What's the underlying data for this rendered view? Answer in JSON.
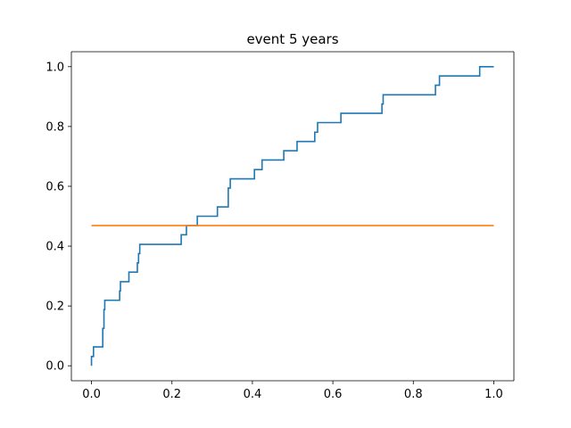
{
  "chart_data": {
    "type": "line",
    "title": "event 5 years",
    "xlabel": "",
    "ylabel": "",
    "xlim": [
      -0.05,
      1.05
    ],
    "ylim": [
      -0.05,
      1.05
    ],
    "grid": false,
    "x_ticks": [
      0.0,
      0.2,
      0.4,
      0.6,
      0.8,
      1.0
    ],
    "y_ticks": [
      0.0,
      0.2,
      0.4,
      0.6,
      0.8,
      1.0
    ],
    "x_tick_labels": [
      "0.0",
      "0.2",
      "0.4",
      "0.6",
      "0.8",
      "1.0"
    ],
    "y_tick_labels": [
      "0.0",
      "0.2",
      "0.4",
      "0.6",
      "0.8",
      "1.0"
    ],
    "series": [
      {
        "color": "#1f77b4",
        "step": true,
        "x": [
          0.0,
          0.0,
          0.005,
          0.005,
          0.01,
          0.01,
          0.028,
          0.028,
          0.031,
          0.031,
          0.033,
          0.033,
          0.07,
          0.07,
          0.072,
          0.072,
          0.093,
          0.093,
          0.114,
          0.114,
          0.117,
          0.117,
          0.12,
          0.12,
          0.223,
          0.223,
          0.236,
          0.236,
          0.263,
          0.263,
          0.313,
          0.313,
          0.34,
          0.34,
          0.345,
          0.345,
          0.352,
          0.352,
          0.405,
          0.405,
          0.424,
          0.424,
          0.478,
          0.478,
          0.511,
          0.511,
          0.555,
          0.555,
          0.562,
          0.562,
          0.62,
          0.62,
          0.722,
          0.722,
          0.725,
          0.725,
          0.855,
          0.855,
          0.858,
          0.858,
          0.865,
          0.865,
          0.965,
          0.965,
          1.0
        ],
        "y": [
          0.0,
          0.031,
          0.031,
          0.063,
          0.063,
          0.063,
          0.063,
          0.125,
          0.125,
          0.188,
          0.188,
          0.219,
          0.219,
          0.25,
          0.25,
          0.281,
          0.281,
          0.313,
          0.313,
          0.344,
          0.344,
          0.375,
          0.375,
          0.406,
          0.406,
          0.438,
          0.438,
          0.469,
          0.469,
          0.5,
          0.5,
          0.531,
          0.531,
          0.594,
          0.594,
          0.625,
          0.625,
          0.625,
          0.625,
          0.656,
          0.656,
          0.688,
          0.688,
          0.719,
          0.719,
          0.75,
          0.75,
          0.781,
          0.781,
          0.813,
          0.813,
          0.844,
          0.844,
          0.875,
          0.875,
          0.906,
          0.906,
          0.938,
          0.938,
          0.938,
          0.938,
          0.969,
          0.969,
          1.0,
          1.0
        ]
      },
      {
        "color": "#ff7f0e",
        "step": false,
        "x": [
          0.0,
          1.0
        ],
        "y": [
          0.469,
          0.469
        ]
      }
    ]
  }
}
